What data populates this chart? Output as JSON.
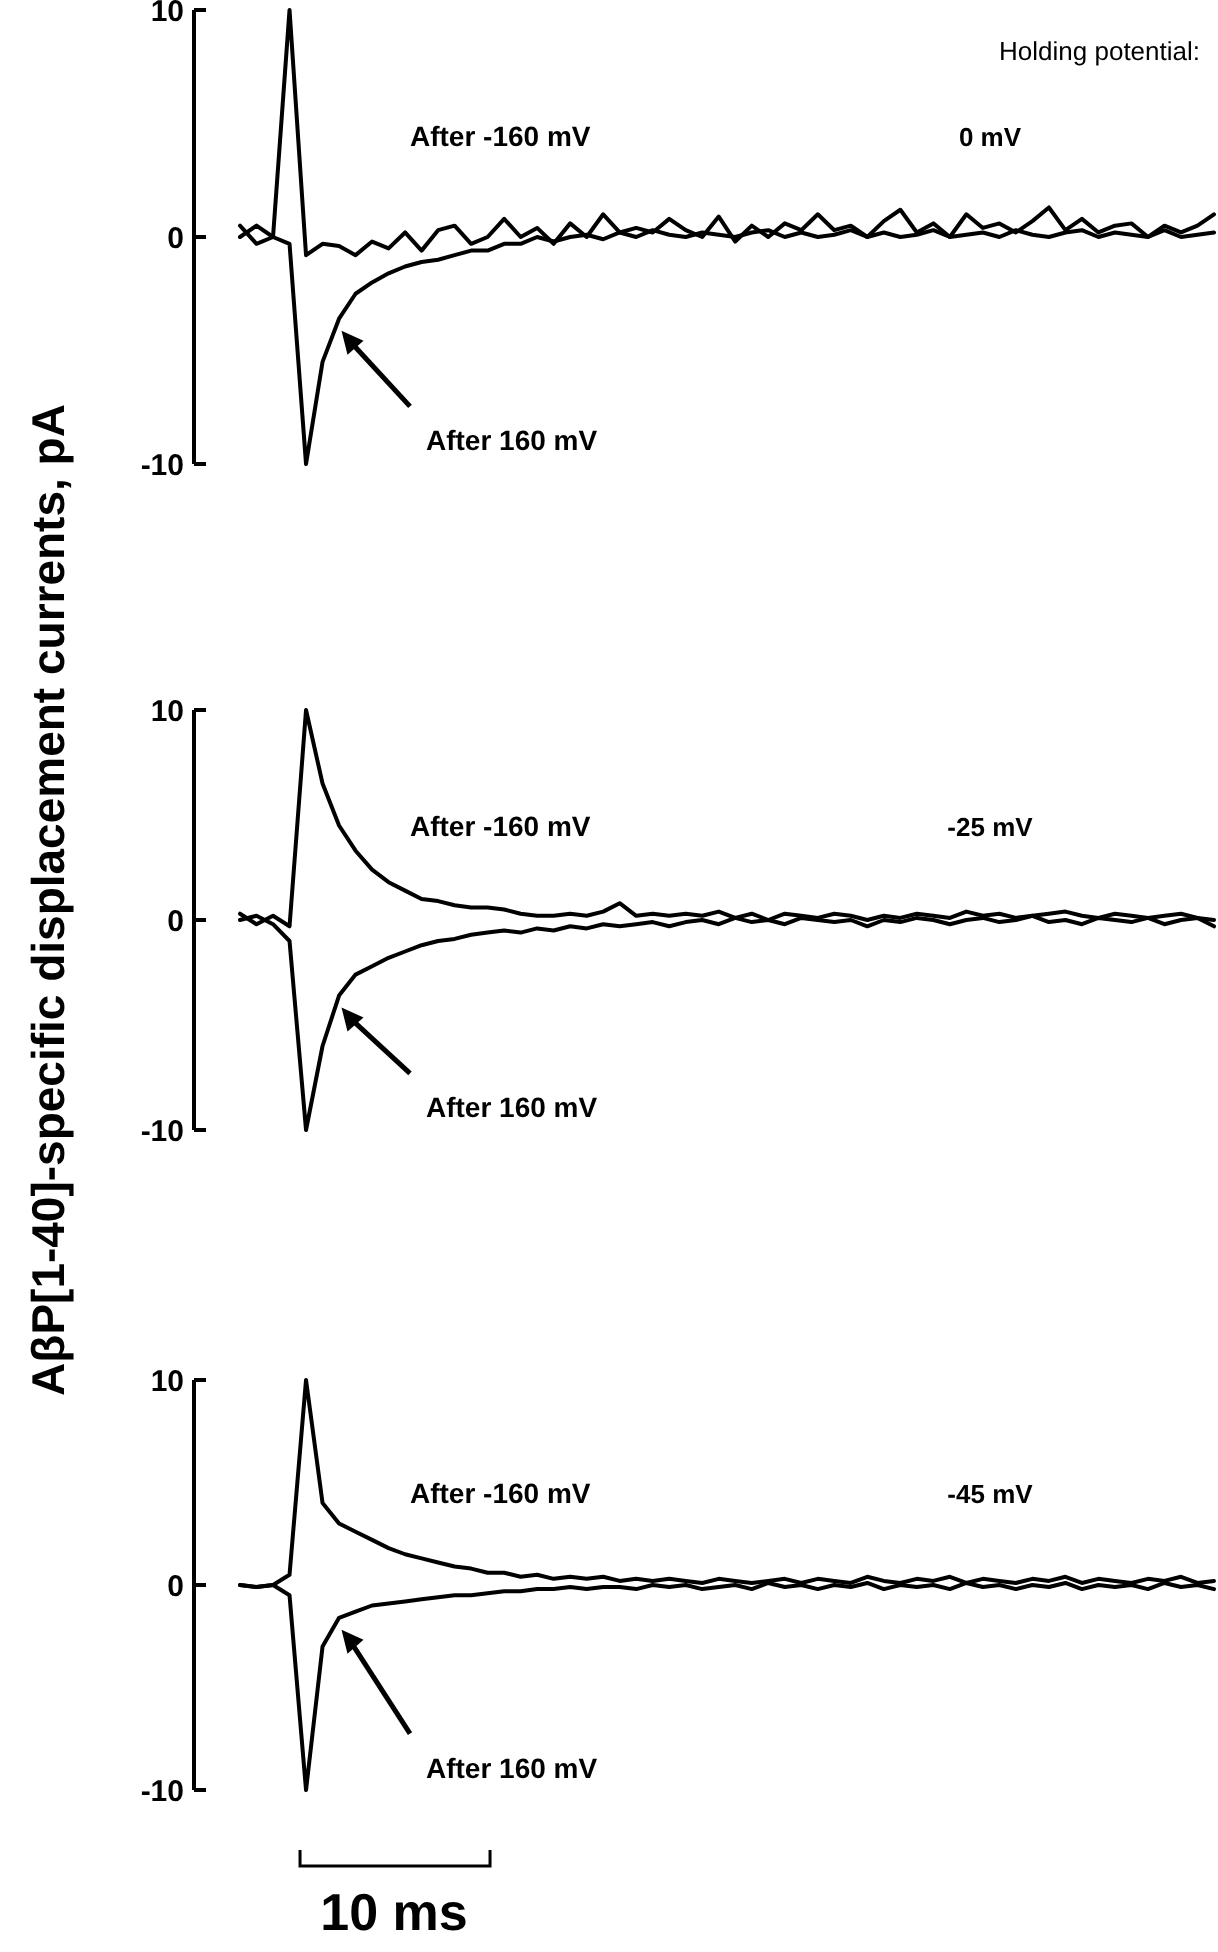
{
  "chart_data": [
    {
      "type": "line",
      "title": "Holding potential:",
      "ylabel": "AβP[1-40]-specific displacement currents, pA",
      "annotations": [
        "0 mV",
        "After -160 mV",
        "After 160 mV"
      ],
      "categories": [
        null,
        null,
        null,
        null,
        null,
        null,
        null,
        null,
        null,
        null,
        null,
        null,
        null,
        null,
        null,
        null,
        null,
        null,
        null,
        null,
        null,
        null,
        null,
        null,
        null,
        null,
        null,
        null,
        null,
        null,
        null,
        null,
        null,
        null,
        null,
        null,
        null,
        null,
        null,
        null,
        null,
        null,
        null,
        null,
        null,
        null,
        null,
        null,
        null,
        null,
        null,
        null,
        null,
        null,
        null,
        null,
        null,
        null,
        null,
        null
      ],
      "ylim": [
        -10,
        10
      ],
      "yticks": [
        -10,
        0,
        10
      ],
      "grid": false,
      "series": [
        {
          "color": "#000000",
          "values": [
            0.5,
            -0.3,
            0,
            10,
            -0.8,
            -0.3,
            -0.4,
            -0.8,
            -0.2,
            -0.5,
            0.2,
            -0.6,
            0.3,
            0.5,
            -0.3,
            0,
            0.8,
            0,
            0.4,
            -0.3,
            0.6,
            0,
            1,
            0.2,
            0.4,
            0.2,
            0.8,
            0.3,
            0,
            0.9,
            -0.2,
            0.5,
            0,
            0.6,
            0.3,
            1,
            0.3,
            0.5,
            0,
            0.7,
            1.2,
            0.2,
            0.6,
            0,
            1,
            0.4,
            0.6,
            0.2,
            0.7,
            1.3,
            0.3,
            0.8,
            0.2,
            0.5,
            0.6,
            0,
            0.5,
            0.2,
            0.5,
            1
          ]
        },
        {
          "color": "#000000",
          "values": [
            0,
            0.5,
            0,
            -0.3,
            -10,
            -5.5,
            -3.6,
            -2.5,
            -2,
            -1.6,
            -1.3,
            -1.1,
            -1,
            -0.8,
            -0.6,
            -0.6,
            -0.3,
            -0.3,
            0,
            -0.2,
            0,
            0.1,
            -0.1,
            0.2,
            0,
            0.3,
            0.1,
            0,
            0.2,
            0.1,
            0,
            0.2,
            0.3,
            0,
            0.2,
            0,
            0.1,
            0.3,
            0,
            0.2,
            0,
            0.1,
            0.3,
            0,
            0.1,
            0.2,
            0,
            0.3,
            0.1,
            0,
            0.2,
            0.3,
            0,
            0.2,
            0.1,
            0,
            0.3,
            0,
            0.1,
            0.2
          ]
        }
      ]
    },
    {
      "type": "line",
      "annotations": [
        "-25 mV",
        "After -160 mV",
        "After 160 mV"
      ],
      "categories": [
        null,
        null,
        null,
        null,
        null,
        null,
        null,
        null,
        null,
        null,
        null,
        null,
        null,
        null,
        null,
        null,
        null,
        null,
        null,
        null,
        null,
        null,
        null,
        null,
        null,
        null,
        null,
        null,
        null,
        null,
        null,
        null,
        null,
        null,
        null,
        null,
        null,
        null,
        null,
        null,
        null,
        null,
        null,
        null,
        null,
        null,
        null,
        null,
        null,
        null,
        null,
        null,
        null,
        null,
        null,
        null,
        null,
        null,
        null,
        null
      ],
      "ylim": [
        -10,
        10
      ],
      "yticks": [
        -10,
        0,
        10
      ],
      "grid": false,
      "series": [
        {
          "color": "#000000",
          "values": [
            0.3,
            -0.2,
            0.2,
            -0.3,
            10,
            6.5,
            4.5,
            3.3,
            2.4,
            1.8,
            1.4,
            1,
            0.9,
            0.7,
            0.6,
            0.6,
            0.5,
            0.3,
            0.2,
            0.2,
            0.3,
            0.2,
            0.4,
            0.8,
            0.2,
            0.3,
            0.2,
            0.3,
            0.2,
            0.4,
            0.1,
            0.3,
            0,
            0.3,
            0.2,
            0.1,
            0.3,
            0.2,
            0,
            0.2,
            0.1,
            0.3,
            0.2,
            0.1,
            0.4,
            0.2,
            0.3,
            0.1,
            0.2,
            0.3,
            0.4,
            0.2,
            0.1,
            0.3,
            0.2,
            0.1,
            0.2,
            0.3,
            0.1,
            0
          ]
        },
        {
          "color": "#000000",
          "values": [
            0,
            0.2,
            -0.2,
            -1,
            -10,
            -6,
            -3.6,
            -2.6,
            -2.2,
            -1.8,
            -1.5,
            -1.2,
            -1,
            -0.9,
            -0.7,
            -0.6,
            -0.5,
            -0.6,
            -0.4,
            -0.5,
            -0.3,
            -0.4,
            -0.2,
            -0.3,
            -0.2,
            -0.1,
            -0.3,
            -0.1,
            0,
            -0.2,
            0.1,
            -0.1,
            0,
            -0.2,
            0.1,
            0,
            -0.1,
            0,
            -0.3,
            0,
            -0.1,
            0.1,
            0,
            -0.2,
            0,
            0.1,
            -0.1,
            0,
            0.2,
            -0.1,
            0,
            -0.2,
            0.1,
            0,
            -0.1,
            0.1,
            -0.2,
            0,
            0.1,
            -0.3
          ]
        }
      ]
    },
    {
      "type": "line",
      "annotations": [
        "-45 mV",
        "After -160 mV",
        "After 160 mV",
        "10 ms"
      ],
      "categories": [
        null,
        null,
        null,
        null,
        null,
        null,
        null,
        null,
        null,
        null,
        null,
        null,
        null,
        null,
        null,
        null,
        null,
        null,
        null,
        null,
        null,
        null,
        null,
        null,
        null,
        null,
        null,
        null,
        null,
        null,
        null,
        null,
        null,
        null,
        null,
        null,
        null,
        null,
        null,
        null,
        null,
        null,
        null,
        null,
        null,
        null,
        null,
        null,
        null,
        null,
        null,
        null,
        null,
        null,
        null,
        null,
        null,
        null,
        null,
        null
      ],
      "ylim": [
        -10,
        10
      ],
      "yticks": [
        -10,
        0,
        10
      ],
      "grid": false,
      "series": [
        {
          "color": "#000000",
          "values": [
            0,
            -0.1,
            0,
            0.5,
            10,
            4,
            3,
            2.6,
            2.2,
            1.8,
            1.5,
            1.3,
            1.1,
            0.9,
            0.8,
            0.6,
            0.6,
            0.4,
            0.5,
            0.3,
            0.4,
            0.3,
            0.4,
            0.2,
            0.3,
            0.2,
            0.3,
            0.2,
            0.1,
            0.3,
            0.2,
            0.1,
            0.2,
            0.3,
            0.1,
            0.3,
            0.2,
            0.1,
            0.4,
            0.2,
            0.1,
            0.3,
            0.2,
            0.4,
            0.1,
            0.3,
            0.2,
            0.1,
            0.3,
            0.2,
            0.4,
            0.1,
            0.3,
            0.2,
            0.1,
            0.3,
            0.2,
            0.4,
            0.1,
            0.2
          ]
        },
        {
          "color": "#000000",
          "values": [
            0,
            -0.1,
            0,
            -0.5,
            -10,
            -3,
            -1.6,
            -1.3,
            -1,
            -0.9,
            -0.8,
            -0.7,
            -0.6,
            -0.5,
            -0.5,
            -0.4,
            -0.3,
            -0.3,
            -0.2,
            -0.2,
            -0.1,
            -0.2,
            -0.1,
            -0.1,
            -0.2,
            0,
            -0.1,
            0,
            -0.2,
            -0.1,
            0,
            -0.2,
            0.1,
            -0.1,
            0,
            -0.2,
            0,
            -0.1,
            0.1,
            -0.2,
            0,
            -0.1,
            0,
            -0.2,
            0.1,
            -0.1,
            0,
            -0.2,
            0,
            -0.1,
            0.1,
            -0.2,
            0,
            -0.1,
            0,
            -0.2,
            0.1,
            -0.1,
            0,
            -0.2
          ]
        }
      ]
    }
  ]
}
